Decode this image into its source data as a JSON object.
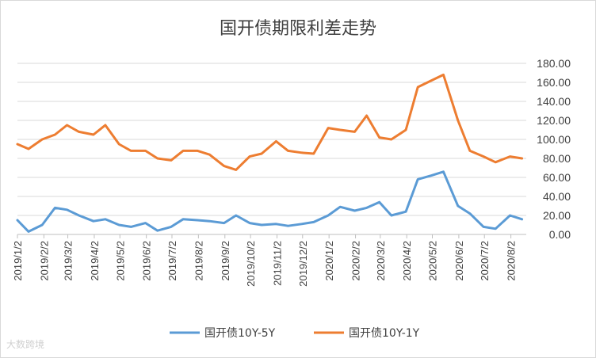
{
  "chart_data": {
    "type": "line",
    "title": "国开债期限利差走势",
    "xlabel": "",
    "ylabel": "",
    "ylim": [
      0,
      180
    ],
    "y_ticks": [
      "180.00",
      "160.00",
      "140.00",
      "120.00",
      "100.00",
      "80.00",
      "60.00",
      "40.00",
      "20.00",
      "0.00"
    ],
    "x_ticks": [
      "2019/1/2",
      "2019/2/2",
      "2019/3/2",
      "2019/4/2",
      "2019/5/2",
      "2019/6/2",
      "2019/7/2",
      "2019/8/2",
      "2019/9/2",
      "2019/10/2",
      "2019/11/2",
      "2019/12/2",
      "2020/1/2",
      "2020/2/2",
      "2020/3/2",
      "2020/4/2",
      "2020/5/2",
      "2020/6/2",
      "2020/7/2",
      "2020/8/2"
    ],
    "grid": true,
    "legend_position": "bottom",
    "series": [
      {
        "name": "国开债10Y-5Y",
        "color": "#5b9bd5",
        "x": [
          "2019/1/2",
          "2019/1/15",
          "2019/1/31",
          "2019/2/15",
          "2019/3/1",
          "2019/3/15",
          "2019/4/1",
          "2019/4/15",
          "2019/5/1",
          "2019/5/15",
          "2019/6/1",
          "2019/6/15",
          "2019/7/1",
          "2019/7/15",
          "2019/8/1",
          "2019/8/15",
          "2019/9/1",
          "2019/9/15",
          "2019/10/1",
          "2019/10/15",
          "2019/11/1",
          "2019/11/15",
          "2019/12/1",
          "2019/12/15",
          "2020/1/1",
          "2020/1/15",
          "2020/2/1",
          "2020/2/15",
          "2020/3/1",
          "2020/3/15",
          "2020/4/1",
          "2020/4/15",
          "2020/5/1",
          "2020/5/15",
          "2020/6/1",
          "2020/6/15",
          "2020/7/1",
          "2020/7/15",
          "2020/8/1",
          "2020/8/15"
        ],
        "values": [
          15,
          3,
          10,
          28,
          26,
          20,
          14,
          16,
          10,
          8,
          12,
          4,
          8,
          16,
          15,
          14,
          12,
          20,
          12,
          10,
          11,
          9,
          11,
          13,
          20,
          29,
          25,
          28,
          34,
          20,
          24,
          58,
          62,
          66,
          30,
          22,
          8,
          6,
          20,
          16
        ]
      },
      {
        "name": "国开债10Y-1Y",
        "color": "#ed7d31",
        "x": [
          "2019/1/2",
          "2019/1/15",
          "2019/1/31",
          "2019/2/15",
          "2019/3/1",
          "2019/3/15",
          "2019/4/1",
          "2019/4/15",
          "2019/5/1",
          "2019/5/15",
          "2019/6/1",
          "2019/6/15",
          "2019/7/1",
          "2019/7/15",
          "2019/8/1",
          "2019/8/15",
          "2019/9/1",
          "2019/9/15",
          "2019/10/1",
          "2019/10/15",
          "2019/11/1",
          "2019/11/15",
          "2019/12/1",
          "2019/12/15",
          "2020/1/1",
          "2020/1/15",
          "2020/2/1",
          "2020/2/15",
          "2020/3/1",
          "2020/3/15",
          "2020/4/1",
          "2020/4/15",
          "2020/5/1",
          "2020/5/15",
          "2020/6/1",
          "2020/6/15",
          "2020/7/1",
          "2020/7/15",
          "2020/8/1",
          "2020/8/15"
        ],
        "values": [
          95,
          90,
          100,
          105,
          115,
          108,
          105,
          115,
          95,
          88,
          88,
          80,
          78,
          88,
          88,
          84,
          72,
          68,
          82,
          85,
          98,
          88,
          86,
          85,
          112,
          110,
          108,
          125,
          102,
          100,
          110,
          155,
          162,
          168,
          120,
          88,
          82,
          76,
          82,
          80
        ]
      }
    ]
  },
  "watermark": "大数跨境"
}
